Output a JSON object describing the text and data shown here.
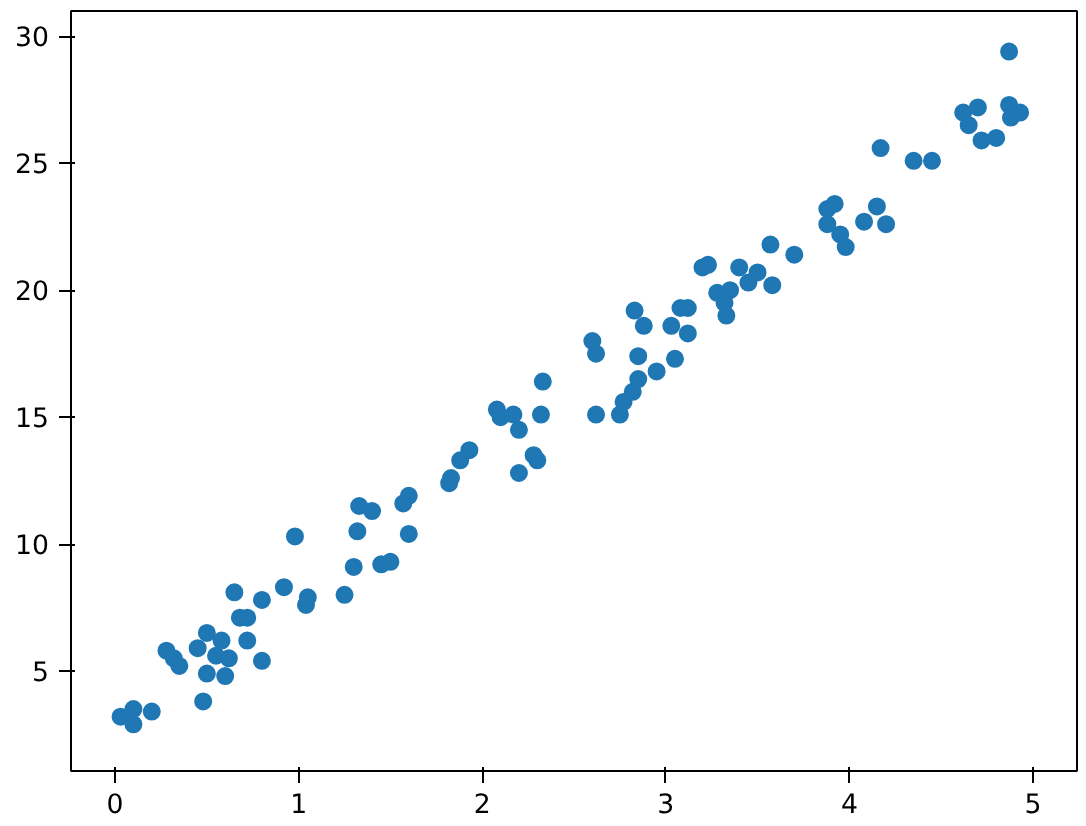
{
  "chart_data": {
    "type": "scatter",
    "marker": "circle",
    "grid": false,
    "xlim": [
      -0.24,
      5.24
    ],
    "ylim": [
      1.06,
      31.0
    ],
    "xticks": [
      0,
      1,
      2,
      3,
      4,
      5
    ],
    "yticks": [
      5,
      10,
      15,
      20,
      25,
      30
    ],
    "series": [
      {
        "color": "#1f77b4",
        "x": [
          0.03,
          0.1,
          0.1,
          0.2,
          0.28,
          0.32,
          0.35,
          0.45,
          0.48,
          0.5,
          0.5,
          0.55,
          0.58,
          0.6,
          0.62,
          0.65,
          0.68,
          0.72,
          0.72,
          0.8,
          0.8,
          0.92,
          0.98,
          1.04,
          1.05,
          1.25,
          1.3,
          1.32,
          1.33,
          1.4,
          1.45,
          1.5,
          1.57,
          1.6,
          1.6,
          1.82,
          1.83,
          1.88,
          1.93,
          2.08,
          2.1,
          2.17,
          2.2,
          2.2,
          2.28,
          2.3,
          2.32,
          2.33,
          2.6,
          2.62,
          2.62,
          2.75,
          2.77,
          2.82,
          2.85,
          2.83,
          2.88,
          2.85,
          2.95,
          3.03,
          3.05,
          3.08,
          3.12,
          3.12,
          3.2,
          3.23,
          3.28,
          3.32,
          3.35,
          3.33,
          3.4,
          3.45,
          3.5,
          3.57,
          3.58,
          3.7,
          3.88,
          3.88,
          3.92,
          3.95,
          3.98,
          4.08,
          4.15,
          4.17,
          4.2,
          4.35,
          4.45,
          4.62,
          4.65,
          4.7,
          4.72,
          4.8,
          4.87,
          4.87,
          4.88,
          4.93
        ],
        "values": [
          3.2,
          3.5,
          2.9,
          3.4,
          5.8,
          5.5,
          5.2,
          5.9,
          3.8,
          6.5,
          4.9,
          5.6,
          6.2,
          4.8,
          5.5,
          8.1,
          7.1,
          6.2,
          7.1,
          5.4,
          7.8,
          8.3,
          10.3,
          7.6,
          7.9,
          8.0,
          9.1,
          10.5,
          11.5,
          11.3,
          9.2,
          9.3,
          11.6,
          10.4,
          11.9,
          12.4,
          12.6,
          13.3,
          13.7,
          15.3,
          15.0,
          15.1,
          14.5,
          12.8,
          13.5,
          13.3,
          15.1,
          16.4,
          18.0,
          17.5,
          15.1,
          15.1,
          15.6,
          16.0,
          16.5,
          19.2,
          18.6,
          17.4,
          16.8,
          18.6,
          17.3,
          19.3,
          18.3,
          19.3,
          20.9,
          21.0,
          19.9,
          19.5,
          20.0,
          19.0,
          20.9,
          20.3,
          20.7,
          21.8,
          20.2,
          21.4,
          22.6,
          23.2,
          23.4,
          22.2,
          21.7,
          22.7,
          23.3,
          25.6,
          22.6,
          25.1,
          25.1,
          27.0,
          26.5,
          27.2,
          25.9,
          26.0,
          29.4,
          27.3,
          26.8,
          27.0
        ]
      }
    ]
  }
}
